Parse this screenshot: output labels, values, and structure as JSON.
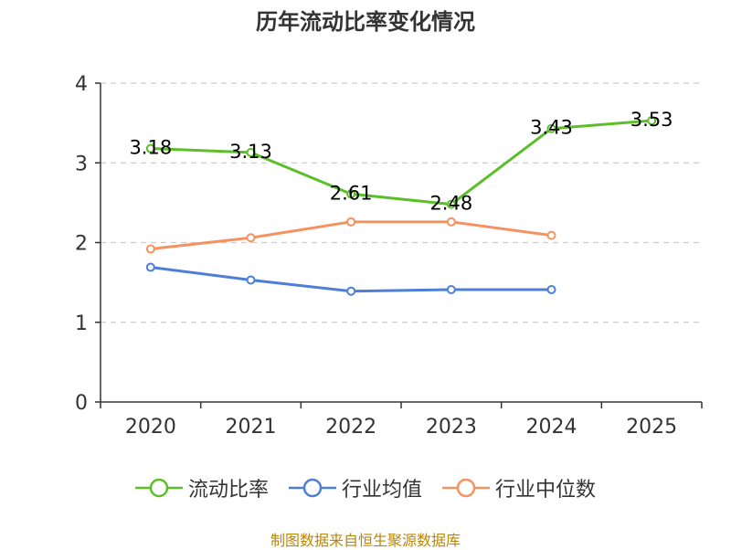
{
  "chart_data": {
    "type": "line",
    "title": "历年流动比率变化情况",
    "categories": [
      "2020",
      "2021",
      "2022",
      "2023",
      "2024",
      "2025"
    ],
    "ylim": [
      0,
      4
    ],
    "yticks": [
      0,
      1,
      2,
      3,
      4
    ],
    "grid": true,
    "legend_position": "bottom",
    "series": [
      {
        "name": "流动比率",
        "color": "#5cbf2a",
        "values": [
          3.18,
          3.13,
          2.61,
          2.48,
          3.43,
          3.53
        ],
        "labels": [
          "3.18",
          "3.13",
          "2.61",
          "2.48",
          "3.43",
          "3.53"
        ],
        "show_labels": true
      },
      {
        "name": "行业均值",
        "color": "#4e7fd6",
        "values": [
          1.69,
          1.53,
          1.39,
          1.41,
          1.41,
          null
        ],
        "show_labels": false
      },
      {
        "name": "行业中位数",
        "color": "#f59262",
        "values": [
          1.92,
          2.06,
          2.26,
          2.26,
          2.09,
          null
        ],
        "show_labels": false
      }
    ]
  },
  "footer": {
    "source": "制图数据来自恒生聚源数据库"
  }
}
